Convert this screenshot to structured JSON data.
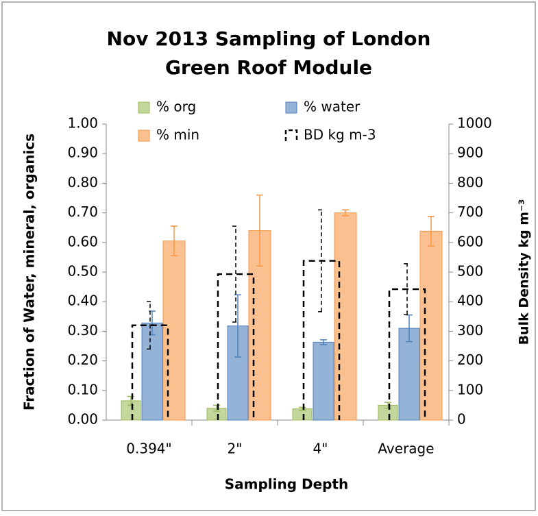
{
  "chart_data": {
    "type": "bar",
    "title": [
      "Nov 2013 Sampling of London",
      "Green Roof Module"
    ],
    "x_label": "Sampling Depth",
    "y_label": "Fraction of Water, mineral, organics",
    "y2_label": "Bulk Density kg m⁻³",
    "categories": [
      "0.394\"",
      "2\"",
      "4\"",
      "Average"
    ],
    "ylim": [
      0,
      1
    ],
    "yticks": [
      {
        "value": 0,
        "label": "0.00"
      },
      {
        "value": 0.1,
        "label": "0.10"
      },
      {
        "value": 0.2,
        "label": "0.20"
      },
      {
        "value": 0.3,
        "label": "0.30"
      },
      {
        "value": 0.4,
        "label": "0.40"
      },
      {
        "value": 0.5,
        "label": "0.50"
      },
      {
        "value": 0.6,
        "label": "0.60"
      },
      {
        "value": 0.7,
        "label": "0.70"
      },
      {
        "value": 0.8,
        "label": "0.80"
      },
      {
        "value": 0.9,
        "label": "0.90"
      },
      {
        "value": 1,
        "label": "1.00"
      }
    ],
    "y2lim": [
      0,
      1000
    ],
    "y2ticks": [
      0,
      100,
      200,
      300,
      400,
      500,
      600,
      700,
      800,
      900,
      1000
    ],
    "series": [
      {
        "name": "% org",
        "color": "#c3d69b",
        "edge": "#9bbb59",
        "values": [
          0.065,
          0.04,
          0.038,
          0.05
        ],
        "errors": [
          0.015,
          0.01,
          0.005,
          0.01
        ]
      },
      {
        "name": "% water",
        "color": "#95b3d7",
        "edge": "#4f81bd",
        "values": [
          0.328,
          0.318,
          0.263,
          0.31
        ],
        "errors": [
          0.04,
          0.105,
          0.008,
          0.045
        ]
      },
      {
        "name": "% min",
        "color": "#fac090",
        "edge": "#f79646",
        "values": [
          0.605,
          0.64,
          0.7,
          0.638
        ],
        "errors": [
          0.05,
          0.12,
          0.01,
          0.05
        ]
      },
      {
        "name": "BD  kg m-3",
        "color": "#000000",
        "axis": "y2",
        "style": "dashed",
        "values": [
          320,
          493,
          538,
          442
        ],
        "errors": [
          80,
          162,
          172,
          86
        ]
      }
    ]
  }
}
